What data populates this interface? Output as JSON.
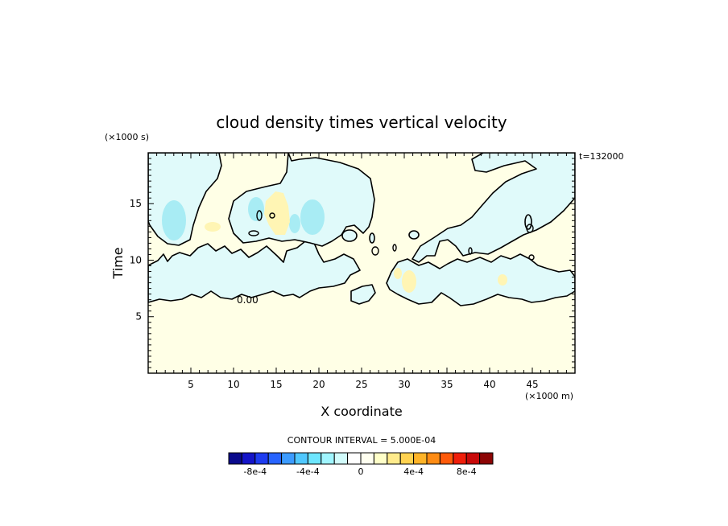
{
  "chart_data": {
    "type": "contour",
    "title": "cloud density times vertical velocity",
    "xlabel": "X coordinate",
    "ylabel": "Time",
    "x_scale_label": "(×1000 m)",
    "y_scale_label": "(×1000 s)",
    "time_stamp": "t=132000",
    "xlim": [
      0,
      50
    ],
    "ylim": [
      0,
      19.5
    ],
    "x_ticks": [
      "5",
      "10",
      "15",
      "20",
      "25",
      "30",
      "35",
      "40",
      "45"
    ],
    "y_ticks": [
      "5",
      "10",
      "15"
    ],
    "x_tick_values": [
      5,
      10,
      15,
      20,
      25,
      30,
      35,
      40,
      45
    ],
    "y_tick_values": [
      5,
      10,
      15
    ],
    "contour_interval_text": "CONTOUR INTERVAL = 5.000E-04",
    "zero_contour_label": "0.00",
    "colorbar": {
      "labels": [
        "-8e-4",
        "-4e-4",
        "0",
        "4e-4",
        "8e-4"
      ],
      "label_values": [
        -0.0008,
        -0.0004,
        0,
        0.0004,
        0.0008
      ],
      "min": -0.001,
      "max": 0.001,
      "colors": [
        "#0a0a8c",
        "#1414c8",
        "#1e3cf0",
        "#2864ff",
        "#3c9bff",
        "#50c8ff",
        "#6ee6ff",
        "#a0f5ff",
        "#d2fcfc",
        "#ffffff",
        "#fffff0",
        "#ffffc8",
        "#ffeb8c",
        "#ffd250",
        "#ffb428",
        "#ff8c14",
        "#ff5a0a",
        "#f01e0a",
        "#c80a0a",
        "#8c0505"
      ]
    },
    "background_color": "#ffffe6",
    "negative_fill_color": "#e0fafa",
    "positive_fill_color": "#fff5b4"
  }
}
